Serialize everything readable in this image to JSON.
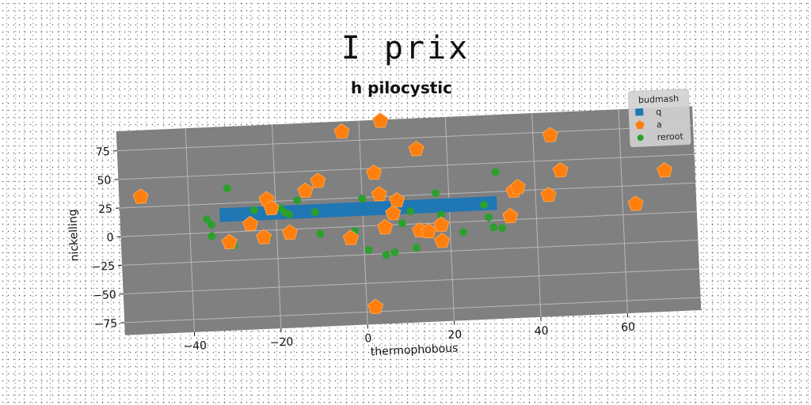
{
  "suptitle": "I prix",
  "chart_data": {
    "type": "scatter",
    "title": "h pilocystic",
    "xlabel": "thermophobous",
    "ylabel": "nickelling",
    "xlim": [
      -56,
      77
    ],
    "ylim": [
      -86,
      92
    ],
    "xticks": [
      -40,
      -20,
      0,
      20,
      40,
      60
    ],
    "yticks": [
      -75,
      -50,
      -25,
      0,
      25,
      50,
      75
    ],
    "grid": true,
    "legend": {
      "title": "budmash",
      "position": "top-right"
    },
    "colors": {
      "q": "#1f77b4",
      "a": "#ff7f0e",
      "reroot": "#2ca02c",
      "plot_bg": "#808080"
    },
    "series": [
      {
        "name": "q",
        "kind": "bar",
        "x_start": -33,
        "x_end": 31,
        "y_low": 9,
        "y_high": 21
      },
      {
        "name": "a",
        "kind": "scatter",
        "points": [
          [
            -51,
            34
          ],
          [
            -31,
            -9
          ],
          [
            -26,
            6
          ],
          [
            -23,
            -6
          ],
          [
            -22,
            27
          ],
          [
            -21,
            19
          ],
          [
            -17,
            -3
          ],
          [
            -13,
            33
          ],
          [
            -10,
            41
          ],
          [
            -4,
            83
          ],
          [
            -3,
            -10
          ],
          [
            3,
            46
          ],
          [
            4,
            27
          ],
          [
            5,
            -2
          ],
          [
            5,
            91
          ],
          [
            7,
            10
          ],
          [
            8,
            21
          ],
          [
            2,
            -71
          ],
          [
            13,
            -6
          ],
          [
            13,
            65
          ],
          [
            15,
            -7
          ],
          [
            18,
            -2
          ],
          [
            18,
            -16
          ],
          [
            34,
            3
          ],
          [
            35,
            25
          ],
          [
            36,
            28
          ],
          [
            43,
            20
          ],
          [
            44,
            72
          ],
          [
            46,
            41
          ],
          [
            63,
            9
          ],
          [
            70,
            37
          ]
        ]
      },
      {
        "name": "reroot",
        "kind": "scatter",
        "points": [
          [
            -36,
            12
          ],
          [
            -35,
            7
          ],
          [
            -35,
            -3
          ],
          [
            -30,
            -12
          ],
          [
            -31,
            38
          ],
          [
            -25,
            18
          ],
          [
            -22,
            -6
          ],
          [
            -19,
            19
          ],
          [
            -18,
            15
          ],
          [
            -17,
            13
          ],
          [
            -15,
            25
          ],
          [
            -11,
            14
          ],
          [
            -10,
            -5
          ],
          [
            -3,
            -10
          ],
          [
            -2,
            -4
          ],
          [
            0,
            24
          ],
          [
            1,
            -21
          ],
          [
            5,
            -26
          ],
          [
            7,
            -24
          ],
          [
            9,
            1
          ],
          [
            11,
            11
          ],
          [
            12,
            -21
          ],
          [
            14,
            -5
          ],
          [
            17,
            26
          ],
          [
            18,
            7
          ],
          [
            23,
            -9
          ],
          [
            28,
            14
          ],
          [
            29,
            3
          ],
          [
            30,
            -6
          ],
          [
            31,
            42
          ],
          [
            32,
            -7
          ]
        ]
      }
    ]
  }
}
